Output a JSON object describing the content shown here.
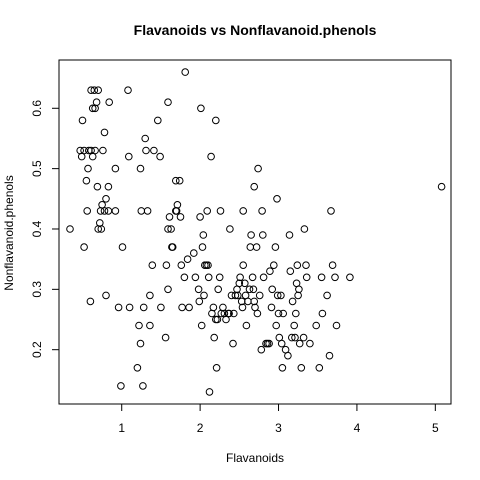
{
  "chart_data": {
    "type": "scatter",
    "title": "Flavanoids vs Nonflavanoid.phenols",
    "xlabel": "Flavanoids",
    "ylabel": "Nonflavanoid.phenols",
    "xlim": [
      0.2,
      5.2
    ],
    "ylim": [
      0.11,
      0.68
    ],
    "xticks": [
      1,
      2,
      3,
      4,
      5
    ],
    "yticks": [
      0.2,
      0.3,
      0.4,
      0.5,
      0.6
    ],
    "grid": false,
    "legend": "none",
    "points": [
      [
        0.34,
        0.4
      ],
      [
        0.47,
        0.53
      ],
      [
        0.49,
        0.52
      ],
      [
        0.5,
        0.58
      ],
      [
        0.52,
        0.37
      ],
      [
        0.52,
        0.53
      ],
      [
        0.55,
        0.48
      ],
      [
        0.56,
        0.43
      ],
      [
        0.57,
        0.5
      ],
      [
        0.58,
        0.53
      ],
      [
        0.6,
        0.28
      ],
      [
        0.61,
        0.63
      ],
      [
        0.61,
        0.53
      ],
      [
        0.63,
        0.6
      ],
      [
        0.63,
        0.52
      ],
      [
        0.65,
        0.63
      ],
      [
        0.66,
        0.6
      ],
      [
        0.66,
        0.53
      ],
      [
        0.68,
        0.61
      ],
      [
        0.69,
        0.47
      ],
      [
        0.7,
        0.63
      ],
      [
        0.7,
        0.4
      ],
      [
        0.72,
        0.41
      ],
      [
        0.73,
        0.43
      ],
      [
        0.74,
        0.4
      ],
      [
        0.75,
        0.44
      ],
      [
        0.76,
        0.53
      ],
      [
        0.78,
        0.56
      ],
      [
        0.78,
        0.43
      ],
      [
        0.8,
        0.45
      ],
      [
        0.8,
        0.29
      ],
      [
        0.83,
        0.43
      ],
      [
        0.83,
        0.47
      ],
      [
        0.84,
        0.61
      ],
      [
        0.92,
        0.43
      ],
      [
        0.92,
        0.5
      ],
      [
        0.96,
        0.27
      ],
      [
        0.99,
        0.14
      ],
      [
        1.01,
        0.37
      ],
      [
        1.08,
        0.63
      ],
      [
        1.09,
        0.52
      ],
      [
        1.1,
        0.27
      ],
      [
        1.2,
        0.17
      ],
      [
        1.22,
        0.24
      ],
      [
        1.24,
        0.5
      ],
      [
        1.24,
        0.21
      ],
      [
        1.25,
        0.43
      ],
      [
        1.27,
        0.14
      ],
      [
        1.28,
        0.27
      ],
      [
        1.3,
        0.55
      ],
      [
        1.31,
        0.53
      ],
      [
        1.33,
        0.43
      ],
      [
        1.36,
        0.29
      ],
      [
        1.36,
        0.24
      ],
      [
        1.39,
        0.34
      ],
      [
        1.41,
        0.53
      ],
      [
        1.46,
        0.58
      ],
      [
        1.49,
        0.52
      ],
      [
        1.5,
        0.27
      ],
      [
        1.56,
        0.22
      ],
      [
        1.57,
        0.34
      ],
      [
        1.59,
        0.61
      ],
      [
        1.59,
        0.4
      ],
      [
        1.59,
        0.3
      ],
      [
        1.61,
        0.42
      ],
      [
        1.63,
        0.4
      ],
      [
        1.64,
        0.37
      ],
      [
        1.65,
        0.37
      ],
      [
        1.69,
        0.48
      ],
      [
        1.69,
        0.43
      ],
      [
        1.7,
        0.43
      ],
      [
        1.71,
        0.44
      ],
      [
        1.74,
        0.48
      ],
      [
        1.75,
        0.42
      ],
      [
        1.76,
        0.34
      ],
      [
        1.77,
        0.27
      ],
      [
        1.8,
        0.32
      ],
      [
        1.81,
        0.66
      ],
      [
        1.84,
        0.35
      ],
      [
        1.86,
        0.27
      ],
      [
        1.92,
        0.36
      ],
      [
        1.94,
        0.32
      ],
      [
        1.98,
        0.3
      ],
      [
        1.99,
        0.28
      ],
      [
        2.0,
        0.42
      ],
      [
        2.01,
        0.6
      ],
      [
        2.02,
        0.24
      ],
      [
        2.03,
        0.37
      ],
      [
        2.04,
        0.39
      ],
      [
        2.05,
        0.29
      ],
      [
        2.06,
        0.34
      ],
      [
        2.08,
        0.34
      ],
      [
        2.09,
        0.43
      ],
      [
        2.1,
        0.34
      ],
      [
        2.11,
        0.32
      ],
      [
        2.12,
        0.13
      ],
      [
        2.14,
        0.52
      ],
      [
        2.15,
        0.26
      ],
      [
        2.17,
        0.27
      ],
      [
        2.18,
        0.22
      ],
      [
        2.2,
        0.58
      ],
      [
        2.2,
        0.25
      ],
      [
        2.21,
        0.17
      ],
      [
        2.22,
        0.25
      ],
      [
        2.23,
        0.3
      ],
      [
        2.25,
        0.32
      ],
      [
        2.26,
        0.43
      ],
      [
        2.27,
        0.26
      ],
      [
        2.29,
        0.27
      ],
      [
        2.31,
        0.26
      ],
      [
        2.33,
        0.25
      ],
      [
        2.36,
        0.26
      ],
      [
        2.37,
        0.26
      ],
      [
        2.38,
        0.4
      ],
      [
        2.4,
        0.29
      ],
      [
        2.42,
        0.21
      ],
      [
        2.43,
        0.26
      ],
      [
        2.45,
        0.29
      ],
      [
        2.47,
        0.3
      ],
      [
        2.48,
        0.29
      ],
      [
        2.5,
        0.31
      ],
      [
        2.51,
        0.32
      ],
      [
        2.53,
        0.28
      ],
      [
        2.54,
        0.27
      ],
      [
        2.55,
        0.34
      ],
      [
        2.55,
        0.43
      ],
      [
        2.57,
        0.31
      ],
      [
        2.58,
        0.29
      ],
      [
        2.59,
        0.24
      ],
      [
        2.61,
        0.28
      ],
      [
        2.63,
        0.3
      ],
      [
        2.64,
        0.37
      ],
      [
        2.65,
        0.39
      ],
      [
        2.67,
        0.32
      ],
      [
        2.68,
        0.3
      ],
      [
        2.69,
        0.47
      ],
      [
        2.69,
        0.28
      ],
      [
        2.7,
        0.27
      ],
      [
        2.72,
        0.37
      ],
      [
        2.73,
        0.26
      ],
      [
        2.74,
        0.5
      ],
      [
        2.76,
        0.29
      ],
      [
        2.78,
        0.2
      ],
      [
        2.79,
        0.43
      ],
      [
        2.8,
        0.39
      ],
      [
        2.81,
        0.32
      ],
      [
        2.84,
        0.21
      ],
      [
        2.86,
        0.21
      ],
      [
        2.88,
        0.21
      ],
      [
        2.89,
        0.33
      ],
      [
        2.91,
        0.27
      ],
      [
        2.92,
        0.3
      ],
      [
        2.94,
        0.34
      ],
      [
        2.96,
        0.37
      ],
      [
        2.97,
        0.24
      ],
      [
        2.98,
        0.45
      ],
      [
        2.99,
        0.29
      ],
      [
        3.0,
        0.26
      ],
      [
        3.01,
        0.22
      ],
      [
        3.03,
        0.29
      ],
      [
        3.04,
        0.21
      ],
      [
        3.05,
        0.17
      ],
      [
        3.06,
        0.26
      ],
      [
        3.09,
        0.2
      ],
      [
        3.12,
        0.19
      ],
      [
        3.14,
        0.39
      ],
      [
        3.15,
        0.33
      ],
      [
        3.17,
        0.22
      ],
      [
        3.18,
        0.28
      ],
      [
        3.2,
        0.24
      ],
      [
        3.21,
        0.22
      ],
      [
        3.22,
        0.26
      ],
      [
        3.23,
        0.31
      ],
      [
        3.24,
        0.34
      ],
      [
        3.25,
        0.29
      ],
      [
        3.26,
        0.3
      ],
      [
        3.27,
        0.21
      ],
      [
        3.29,
        0.17
      ],
      [
        3.32,
        0.22
      ],
      [
        3.33,
        0.4
      ],
      [
        3.35,
        0.34
      ],
      [
        3.36,
        0.32
      ],
      [
        3.4,
        0.21
      ],
      [
        3.48,
        0.24
      ],
      [
        3.52,
        0.17
      ],
      [
        3.55,
        0.32
      ],
      [
        3.56,
        0.26
      ],
      [
        3.62,
        0.29
      ],
      [
        3.65,
        0.19
      ],
      [
        3.67,
        0.43
      ],
      [
        3.69,
        0.34
      ],
      [
        3.72,
        0.32
      ],
      [
        3.74,
        0.24
      ],
      [
        3.91,
        0.32
      ],
      [
        5.08,
        0.47
      ]
    ]
  }
}
